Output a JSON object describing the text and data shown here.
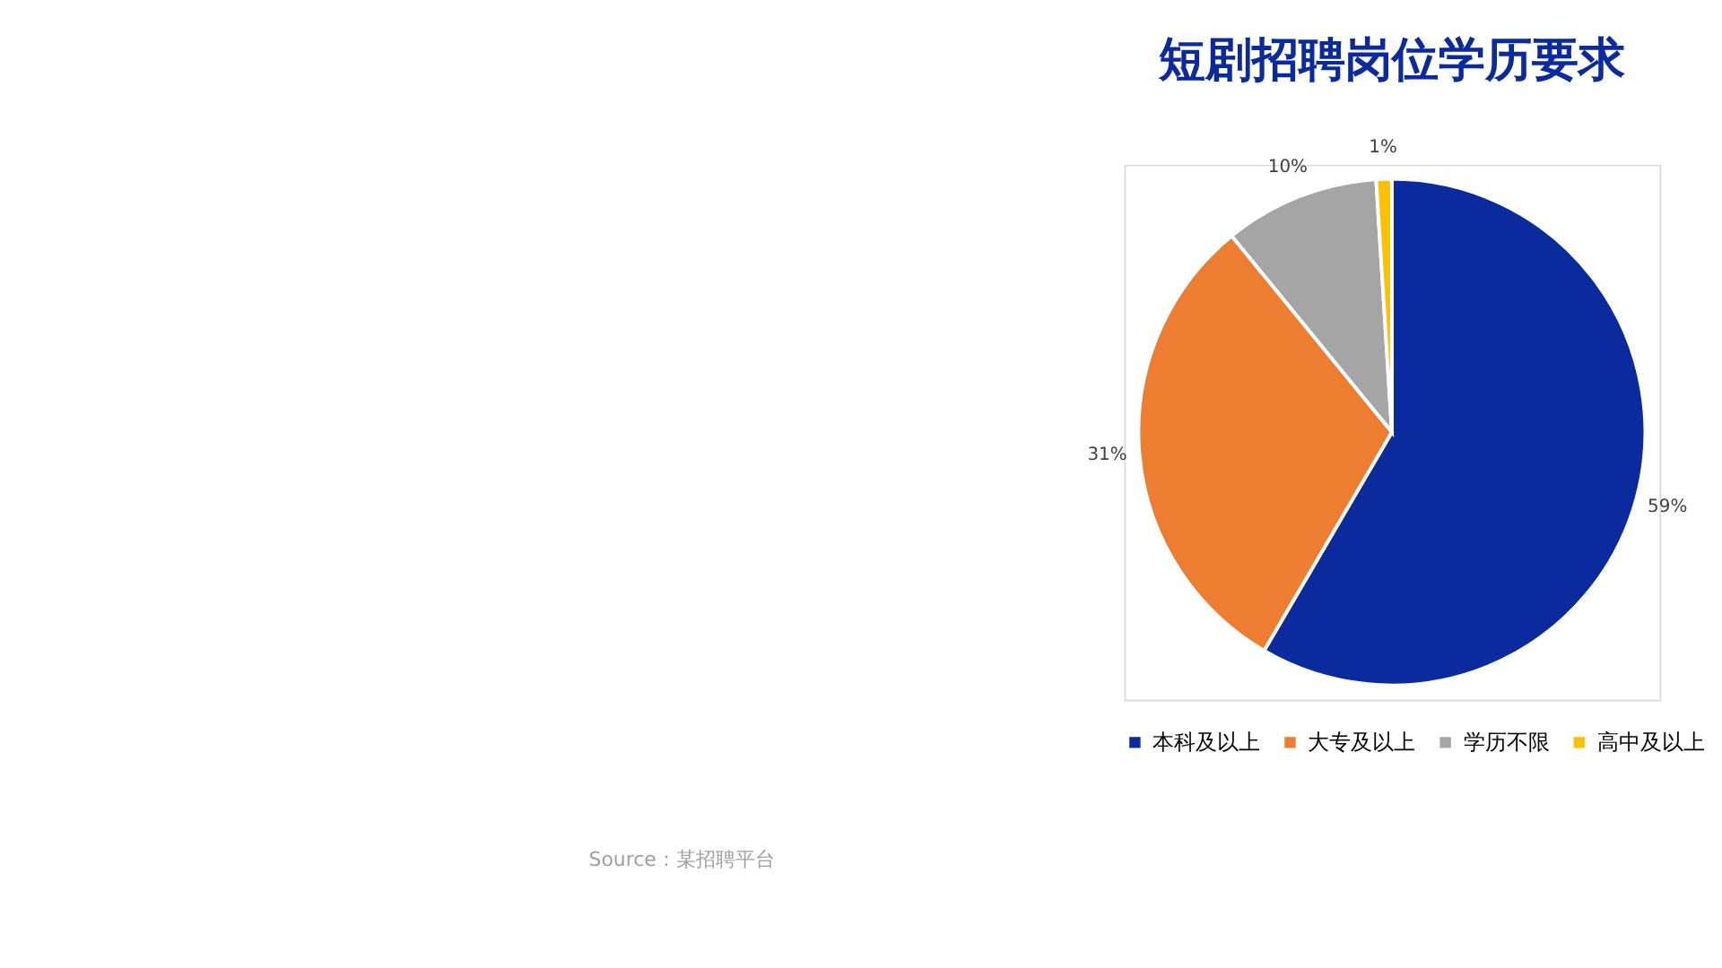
{
  "chart_data": {
    "type": "pie",
    "title": "短剧招聘岗位学历要求",
    "categories": [
      "本科及以上",
      "大专及以上",
      "学历不限",
      "高中及以上"
    ],
    "values": [
      59,
      31,
      10,
      1
    ],
    "colors": [
      "#0b2a9e",
      "#ed7d31",
      "#a5a5a5",
      "#ffc000"
    ],
    "value_labels": [
      "59%",
      "31%",
      "10%",
      "1%"
    ],
    "legend": "bottom",
    "annotations": [
      "Source：某招聘平台"
    ]
  }
}
